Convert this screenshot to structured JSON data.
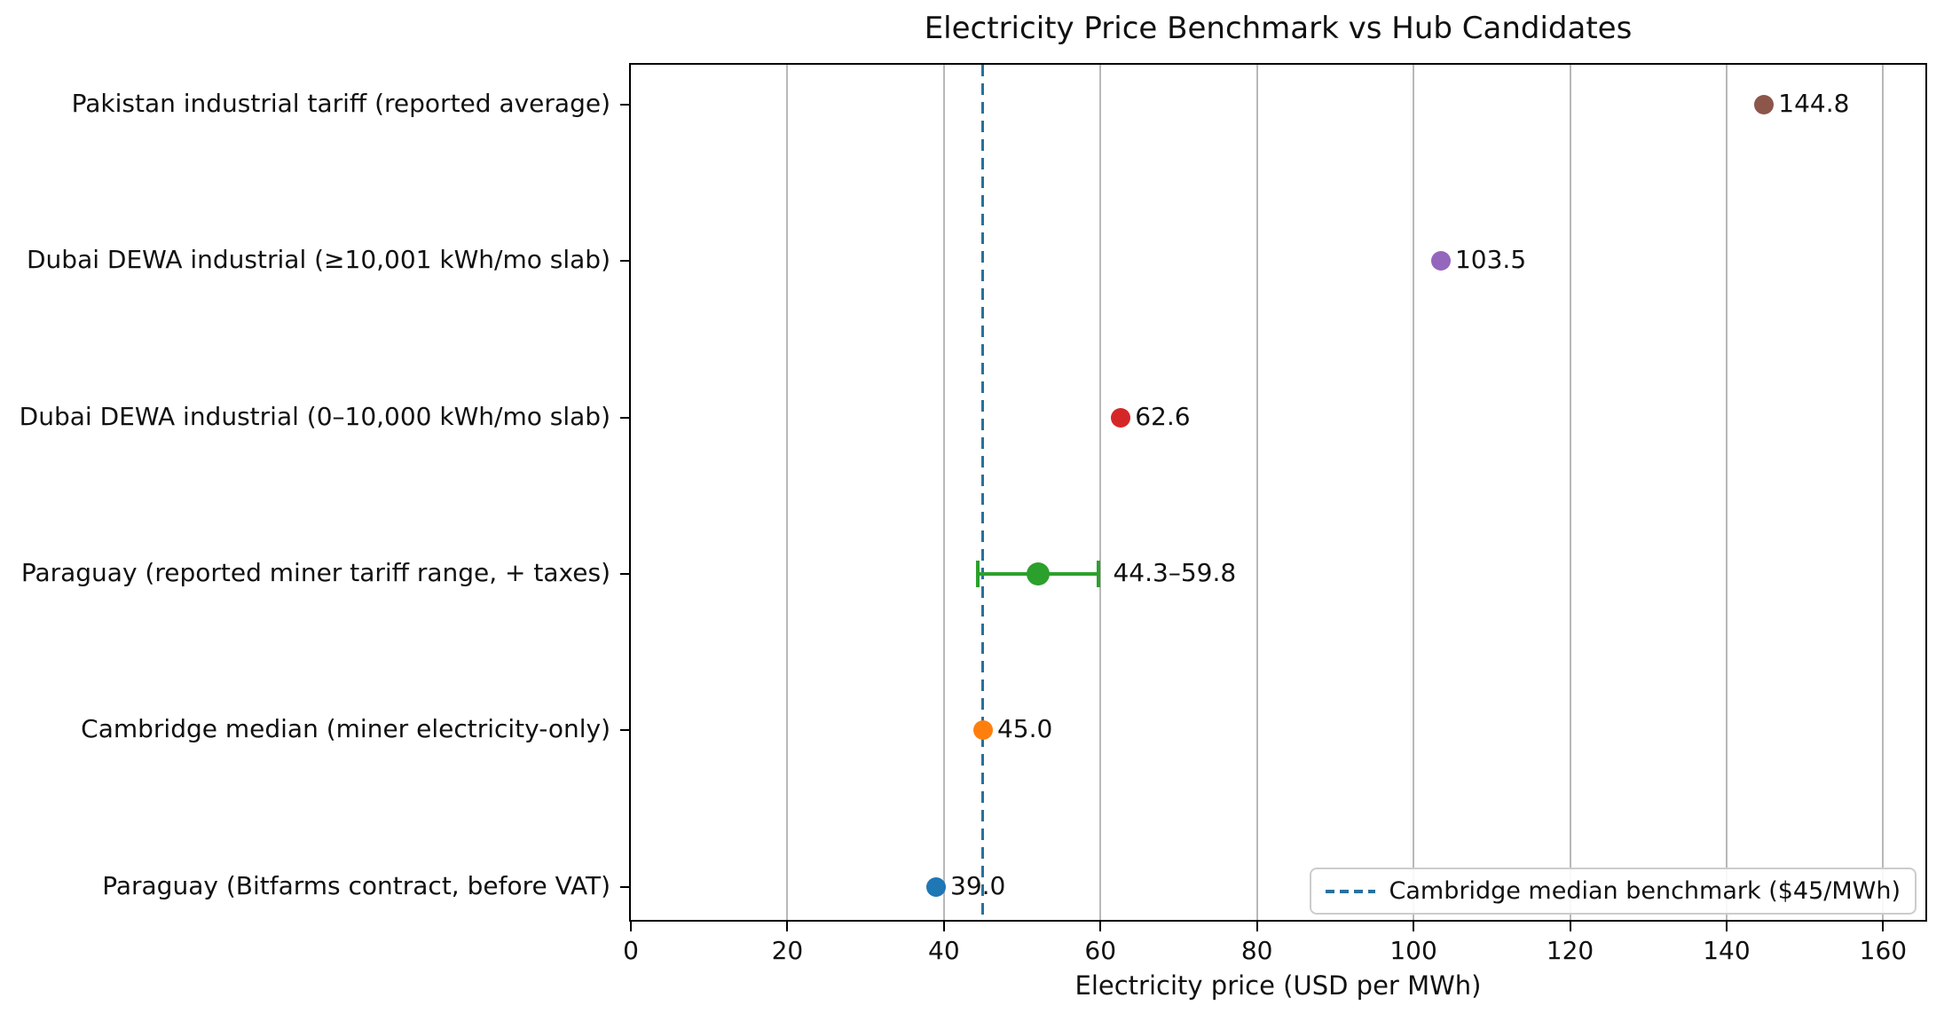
{
  "chart_data": {
    "type": "scatter",
    "orientation": "horizontal",
    "title": "Electricity Price Benchmark vs Hub Candidates",
    "xlabel": "Electricity price (USD per MWh)",
    "xlim": [
      0,
      165.4
    ],
    "xticks": [
      0,
      20,
      40,
      60,
      80,
      100,
      120,
      140,
      160
    ],
    "grid": "vertical-only",
    "rows": [
      {
        "label": "Pakistan industrial tariff (reported average)",
        "value": 144.8,
        "value_label": "144.8",
        "color": "#8c564b"
      },
      {
        "label": "Dubai DEWA industrial (≥10,001 kWh/mo slab)",
        "value": 103.5,
        "value_label": "103.5",
        "color": "#9467bd"
      },
      {
        "label": "Dubai DEWA industrial (0–10,000 kWh/mo slab)",
        "value": 62.6,
        "value_label": "62.6",
        "color": "#d62728"
      },
      {
        "label": "Paraguay (reported miner tariff range, + taxes)",
        "value": 52.05,
        "range": [
          44.3,
          59.8
        ],
        "value_label": "44.3–59.8",
        "color": "#2ca02c"
      },
      {
        "label": "Cambridge median (miner electricity-only)",
        "value": 45.0,
        "value_label": "45.0",
        "color": "#ff7f0e"
      },
      {
        "label": "Paraguay (Bitfarms contract, before VAT)",
        "value": 39.0,
        "value_label": "39.0",
        "color": "#1f77b4"
      }
    ],
    "benchmark": {
      "value": 45,
      "label": "Cambridge median benchmark ($45/MWh)",
      "color": "#27719c",
      "style": "dashed"
    },
    "legend_position": "lower right"
  },
  "colors": {
    "background": "#ffffff",
    "grid": "#b8b8b8",
    "axis": "#000000",
    "text": "#111111"
  }
}
